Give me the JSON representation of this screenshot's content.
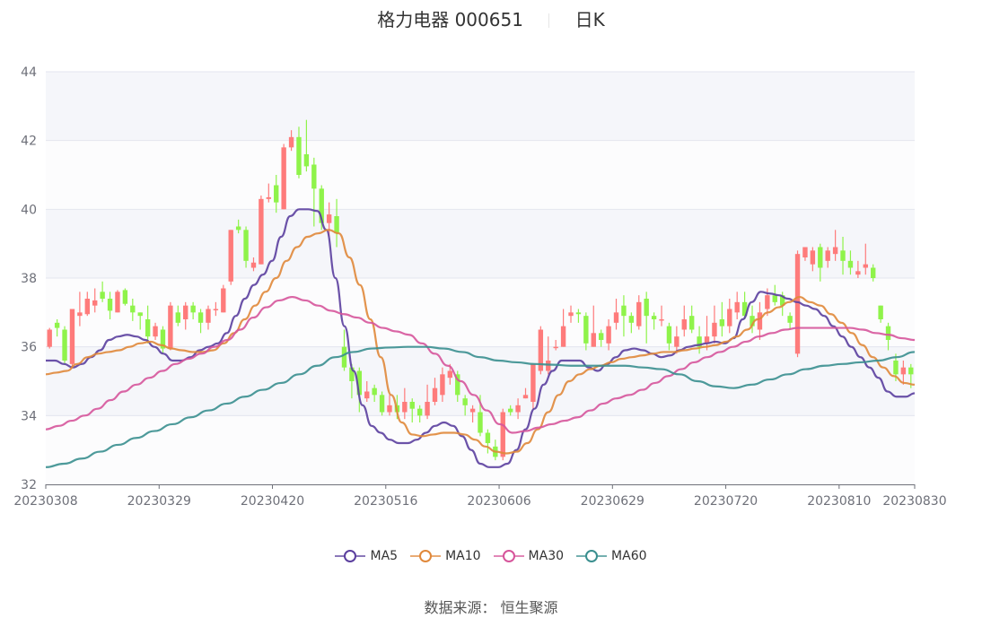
{
  "header": {
    "stock_name": "格力电器 000651",
    "period": "日K"
  },
  "source": "数据来源： 恒生聚源",
  "legend": [
    {
      "label": "MA5",
      "color": "#5b3f9e"
    },
    {
      "label": "MA10",
      "color": "#e0883a"
    },
    {
      "label": "MA30",
      "color": "#d6559b"
    },
    {
      "label": "MA60",
      "color": "#3a8f8f"
    }
  ],
  "colors": {
    "up": "#fe7b7b",
    "down": "#8ff34a",
    "band": "#f5f6fa",
    "grid": "#e3e6ef"
  },
  "chart_data": {
    "type": "candlestick",
    "title": "格力电器 000651 日K",
    "xlabel": "",
    "ylabel": "",
    "ylim": [
      32,
      44
    ],
    "yticks": [
      32,
      34,
      36,
      38,
      40,
      42,
      44
    ],
    "xtick_labels": [
      "20230308",
      "20230329",
      "20230420",
      "20230516",
      "20230606",
      "20230629",
      "20230720",
      "20230810",
      "20230830"
    ],
    "xtick_index": [
      0,
      15,
      30,
      45,
      60,
      75,
      90,
      105,
      120
    ],
    "grid": true,
    "legend_position": "bottom",
    "candles": [
      [
        36.0,
        36.5,
        35.95,
        36.55
      ],
      [
        36.7,
        36.55,
        36.3,
        36.8
      ],
      [
        36.5,
        35.6,
        35.5,
        36.6
      ],
      [
        35.5,
        37.1,
        35.4,
        37.1
      ],
      [
        36.9,
        37.0,
        36.6,
        37.6
      ],
      [
        36.95,
        37.4,
        36.9,
        37.6
      ],
      [
        37.2,
        37.35,
        37.0,
        37.7
      ],
      [
        37.6,
        37.4,
        37.3,
        37.9
      ],
      [
        37.4,
        37.05,
        36.8,
        37.6
      ],
      [
        37.0,
        37.6,
        37.0,
        37.65
      ],
      [
        37.65,
        37.25,
        37.2,
        37.7
      ],
      [
        37.2,
        37.0,
        36.75,
        37.4
      ],
      [
        37.0,
        36.9,
        36.5,
        37.0
      ],
      [
        36.8,
        36.3,
        36.1,
        37.2
      ],
      [
        36.3,
        36.6,
        36.2,
        36.7
      ],
      [
        36.5,
        35.95,
        35.8,
        36.6
      ],
      [
        35.95,
        37.2,
        35.9,
        37.3
      ],
      [
        37.0,
        36.7,
        36.6,
        37.2
      ],
      [
        36.8,
        37.2,
        36.5,
        37.3
      ],
      [
        37.2,
        37.0,
        36.8,
        37.3
      ],
      [
        37.0,
        36.7,
        36.4,
        37.1
      ],
      [
        36.7,
        37.1,
        36.5,
        37.2
      ],
      [
        37.1,
        37.1,
        36.9,
        37.3
      ],
      [
        37.0,
        37.7,
        37.0,
        37.8
      ],
      [
        37.9,
        39.4,
        37.8,
        39.4
      ],
      [
        39.5,
        39.4,
        39.3,
        39.7
      ],
      [
        39.4,
        38.5,
        38.3,
        39.5
      ],
      [
        38.3,
        38.45,
        38.2,
        38.6
      ],
      [
        38.4,
        40.3,
        38.4,
        40.4
      ],
      [
        40.3,
        40.35,
        40.2,
        40.75
      ],
      [
        40.7,
        40.2,
        39.9,
        41.0
      ],
      [
        40.0,
        41.8,
        40.0,
        41.9
      ],
      [
        41.8,
        42.1,
        41.7,
        42.3
      ],
      [
        42.1,
        41.0,
        40.9,
        42.4
      ],
      [
        41.6,
        41.25,
        41.1,
        42.6
      ],
      [
        41.3,
        40.6,
        39.5,
        41.5
      ],
      [
        40.6,
        39.6,
        39.4,
        40.7
      ],
      [
        39.6,
        39.85,
        39.2,
        40.2
      ],
      [
        39.8,
        39.3,
        38.9,
        40.3
      ],
      [
        36.0,
        35.4,
        35.3,
        36.5
      ],
      [
        35.4,
        35.0,
        34.5,
        35.5
      ],
      [
        35.3,
        34.6,
        34.1,
        35.4
      ],
      [
        34.5,
        34.7,
        34.4,
        35.0
      ],
      [
        34.8,
        34.6,
        34.4,
        34.9
      ],
      [
        34.6,
        34.1,
        34.0,
        34.7
      ],
      [
        34.1,
        34.3,
        34.0,
        34.6
      ],
      [
        34.3,
        34.1,
        33.9,
        34.6
      ],
      [
        34.1,
        34.4,
        33.9,
        34.8
      ],
      [
        34.4,
        34.2,
        33.8,
        34.5
      ],
      [
        34.2,
        34.0,
        33.8,
        34.3
      ],
      [
        34.0,
        34.4,
        33.9,
        34.9
      ],
      [
        34.4,
        34.8,
        34.3,
        35.1
      ],
      [
        34.6,
        35.2,
        34.4,
        35.4
      ],
      [
        35.1,
        35.3,
        34.9,
        35.5
      ],
      [
        35.2,
        34.6,
        34.4,
        35.3
      ],
      [
        34.5,
        34.3,
        34.0,
        34.6
      ],
      [
        34.1,
        34.2,
        33.8,
        34.3
      ],
      [
        34.1,
        33.5,
        33.4,
        34.6
      ],
      [
        33.5,
        33.2,
        32.9,
        33.6
      ],
      [
        33.1,
        32.8,
        32.7,
        33.3
      ],
      [
        32.8,
        34.1,
        32.7,
        34.2
      ],
      [
        34.2,
        34.1,
        34.0,
        34.3
      ],
      [
        34.1,
        34.3,
        33.9,
        34.5
      ],
      [
        34.5,
        34.6,
        34.5,
        34.8
      ],
      [
        34.4,
        35.5,
        34.2,
        35.5
      ],
      [
        35.3,
        36.5,
        35.2,
        36.6
      ],
      [
        35.3,
        35.6,
        35.2,
        36.3
      ],
      [
        36.0,
        36.0,
        35.9,
        36.2
      ],
      [
        36.0,
        36.6,
        36.0,
        37.1
      ],
      [
        36.9,
        37.0,
        36.7,
        37.2
      ],
      [
        37.0,
        36.95,
        36.7,
        37.1
      ],
      [
        36.9,
        36.1,
        35.9,
        37.0
      ],
      [
        36.0,
        36.4,
        36.0,
        37.2
      ],
      [
        36.4,
        36.2,
        36.0,
        36.5
      ],
      [
        36.1,
        36.6,
        35.9,
        36.8
      ],
      [
        36.7,
        37.0,
        36.5,
        37.4
      ],
      [
        37.2,
        36.9,
        36.3,
        37.5
      ],
      [
        36.9,
        36.7,
        36.4,
        37.0
      ],
      [
        36.6,
        37.3,
        36.5,
        37.5
      ],
      [
        37.4,
        36.9,
        36.1,
        37.6
      ],
      [
        36.9,
        36.8,
        36.5,
        37.0
      ],
      [
        36.8,
        36.8,
        36.6,
        37.2
      ],
      [
        36.6,
        36.1,
        35.9,
        36.7
      ],
      [
        36.0,
        36.3,
        35.8,
        36.6
      ],
      [
        36.5,
        36.8,
        36.3,
        37.2
      ],
      [
        36.9,
        36.5,
        36.4,
        37.2
      ],
      [
        36.3,
        36.0,
        35.8,
        36.6
      ],
      [
        36.1,
        36.3,
        35.9,
        36.9
      ],
      [
        36.3,
        36.7,
        36.1,
        37.2
      ],
      [
        36.8,
        36.6,
        36.3,
        37.3
      ],
      [
        36.6,
        37.1,
        36.4,
        37.4
      ],
      [
        37.0,
        37.3,
        36.8,
        37.6
      ],
      [
        37.3,
        36.9,
        36.8,
        37.6
      ],
      [
        36.9,
        36.6,
        36.4,
        37.2
      ],
      [
        36.5,
        37.0,
        36.2,
        37.3
      ],
      [
        37.1,
        37.5,
        36.9,
        37.7
      ],
      [
        37.5,
        37.3,
        37.2,
        37.8
      ],
      [
        37.5,
        37.2,
        36.9,
        37.6
      ],
      [
        36.9,
        36.7,
        36.5,
        37.0
      ],
      [
        35.8,
        38.7,
        35.7,
        38.8
      ],
      [
        38.6,
        38.9,
        38.5,
        38.9
      ],
      [
        38.4,
        38.8,
        38.2,
        38.9
      ],
      [
        38.9,
        38.3,
        37.9,
        39.0
      ],
      [
        38.5,
        38.8,
        38.3,
        38.9
      ],
      [
        38.7,
        38.9,
        38.5,
        39.4
      ],
      [
        38.8,
        38.5,
        38.1,
        39.2
      ],
      [
        38.5,
        38.3,
        38.1,
        38.8
      ],
      [
        38.1,
        38.2,
        38.0,
        38.5
      ],
      [
        38.3,
        38.4,
        38.1,
        39.0
      ],
      [
        38.3,
        38.0,
        37.9,
        38.4
      ],
      [
        37.2,
        36.8,
        36.7,
        37.2
      ],
      [
        36.6,
        36.2,
        35.9,
        36.7
      ],
      [
        35.6,
        35.2,
        35.0,
        35.8
      ],
      [
        35.2,
        35.4,
        34.9,
        35.6
      ],
      [
        35.4,
        35.2,
        34.8,
        35.5
      ]
    ],
    "series": [
      {
        "name": "MA5",
        "values": [
          35.6,
          35.6,
          35.5,
          35.4,
          35.5,
          35.7,
          35.9,
          36.2,
          36.3,
          36.35,
          36.3,
          36.2,
          36.0,
          35.8,
          35.6,
          35.6,
          35.7,
          35.9,
          36.0,
          36.1,
          36.4,
          36.9,
          37.4,
          37.8,
          38.1,
          38.5,
          39.2,
          39.8,
          40.0,
          40.0,
          39.95,
          39.4,
          38.0,
          36.6,
          35.3,
          34.3,
          33.7,
          33.5,
          33.3,
          33.2,
          33.2,
          33.3,
          33.5,
          33.7,
          33.8,
          33.7,
          33.4,
          33.0,
          32.6,
          32.5,
          32.5,
          32.6,
          33.0,
          33.6,
          34.2,
          34.9,
          35.3,
          35.6,
          35.6,
          35.6,
          35.4,
          35.3,
          35.5,
          35.7,
          35.9,
          35.95,
          35.9,
          35.8,
          35.7,
          35.75,
          35.9,
          36.0,
          36.05,
          36.1,
          36.15,
          36.1,
          36.25,
          36.8,
          37.3,
          37.6,
          37.55,
          37.5,
          37.4,
          37.3,
          37.2,
          37.1,
          36.9,
          36.6,
          36.3,
          36.0,
          35.7,
          35.4,
          35.1,
          34.7,
          34.55,
          34.55,
          34.65
        ]
      },
      {
        "name": "MA10",
        "values": [
          35.2,
          35.25,
          35.3,
          35.5,
          35.7,
          35.8,
          35.85,
          35.9,
          36.0,
          36.1,
          36.15,
          36.05,
          35.95,
          35.9,
          35.85,
          35.85,
          35.9,
          36.1,
          36.4,
          36.8,
          37.2,
          37.6,
          38.0,
          38.5,
          38.9,
          39.2,
          39.3,
          39.4,
          39.3,
          38.6,
          37.8,
          36.8,
          35.7,
          34.6,
          33.8,
          33.45,
          33.4,
          33.45,
          33.5,
          33.5,
          33.45,
          33.3,
          33.1,
          32.95,
          32.9,
          32.95,
          33.2,
          33.6,
          34.1,
          34.6,
          35.0,
          35.2,
          35.35,
          35.45,
          35.55,
          35.65,
          35.7,
          35.75,
          35.8,
          35.85,
          35.85,
          35.9,
          35.95,
          36.0,
          36.05,
          36.15,
          36.3,
          36.5,
          36.8,
          37.0,
          37.15,
          37.3,
          37.45,
          37.3,
          37.2,
          36.95,
          36.7,
          36.4,
          36.05,
          35.7,
          35.4,
          35.15,
          34.95,
          34.9
        ]
      },
      {
        "name": "MA30",
        "values": [
          33.6,
          33.7,
          33.85,
          34.0,
          34.2,
          34.45,
          34.7,
          34.9,
          35.1,
          35.3,
          35.5,
          35.65,
          35.8,
          36.0,
          36.2,
          36.5,
          36.85,
          37.15,
          37.35,
          37.45,
          37.35,
          37.2,
          37.05,
          36.95,
          36.85,
          36.7,
          36.55,
          36.45,
          36.35,
          36.1,
          35.8,
          35.45,
          35.0,
          34.6,
          34.15,
          33.75,
          33.5,
          33.55,
          33.65,
          33.75,
          33.85,
          33.95,
          34.15,
          34.35,
          34.5,
          34.6,
          34.75,
          34.95,
          35.15,
          35.35,
          35.55,
          35.7,
          35.85,
          36.0,
          36.15,
          36.3,
          36.4,
          36.5,
          36.55,
          36.55,
          36.55,
          36.55,
          36.55,
          36.5,
          36.4,
          36.35,
          36.25,
          36.2
        ]
      },
      {
        "name": "MA60",
        "values": [
          32.5,
          32.6,
          32.75,
          32.95,
          33.15,
          33.35,
          33.55,
          33.75,
          33.95,
          34.15,
          34.35,
          34.55,
          34.75,
          34.95,
          35.2,
          35.45,
          35.7,
          35.85,
          35.95,
          35.98,
          36.0,
          36.0,
          35.95,
          35.85,
          35.7,
          35.6,
          35.55,
          35.5,
          35.48,
          35.45,
          35.45,
          35.45,
          35.45,
          35.4,
          35.35,
          35.2,
          35.0,
          34.85,
          34.8,
          34.9,
          35.05,
          35.2,
          35.35,
          35.45,
          35.5,
          35.55,
          35.6,
          35.7,
          35.85
        ]
      }
    ]
  }
}
